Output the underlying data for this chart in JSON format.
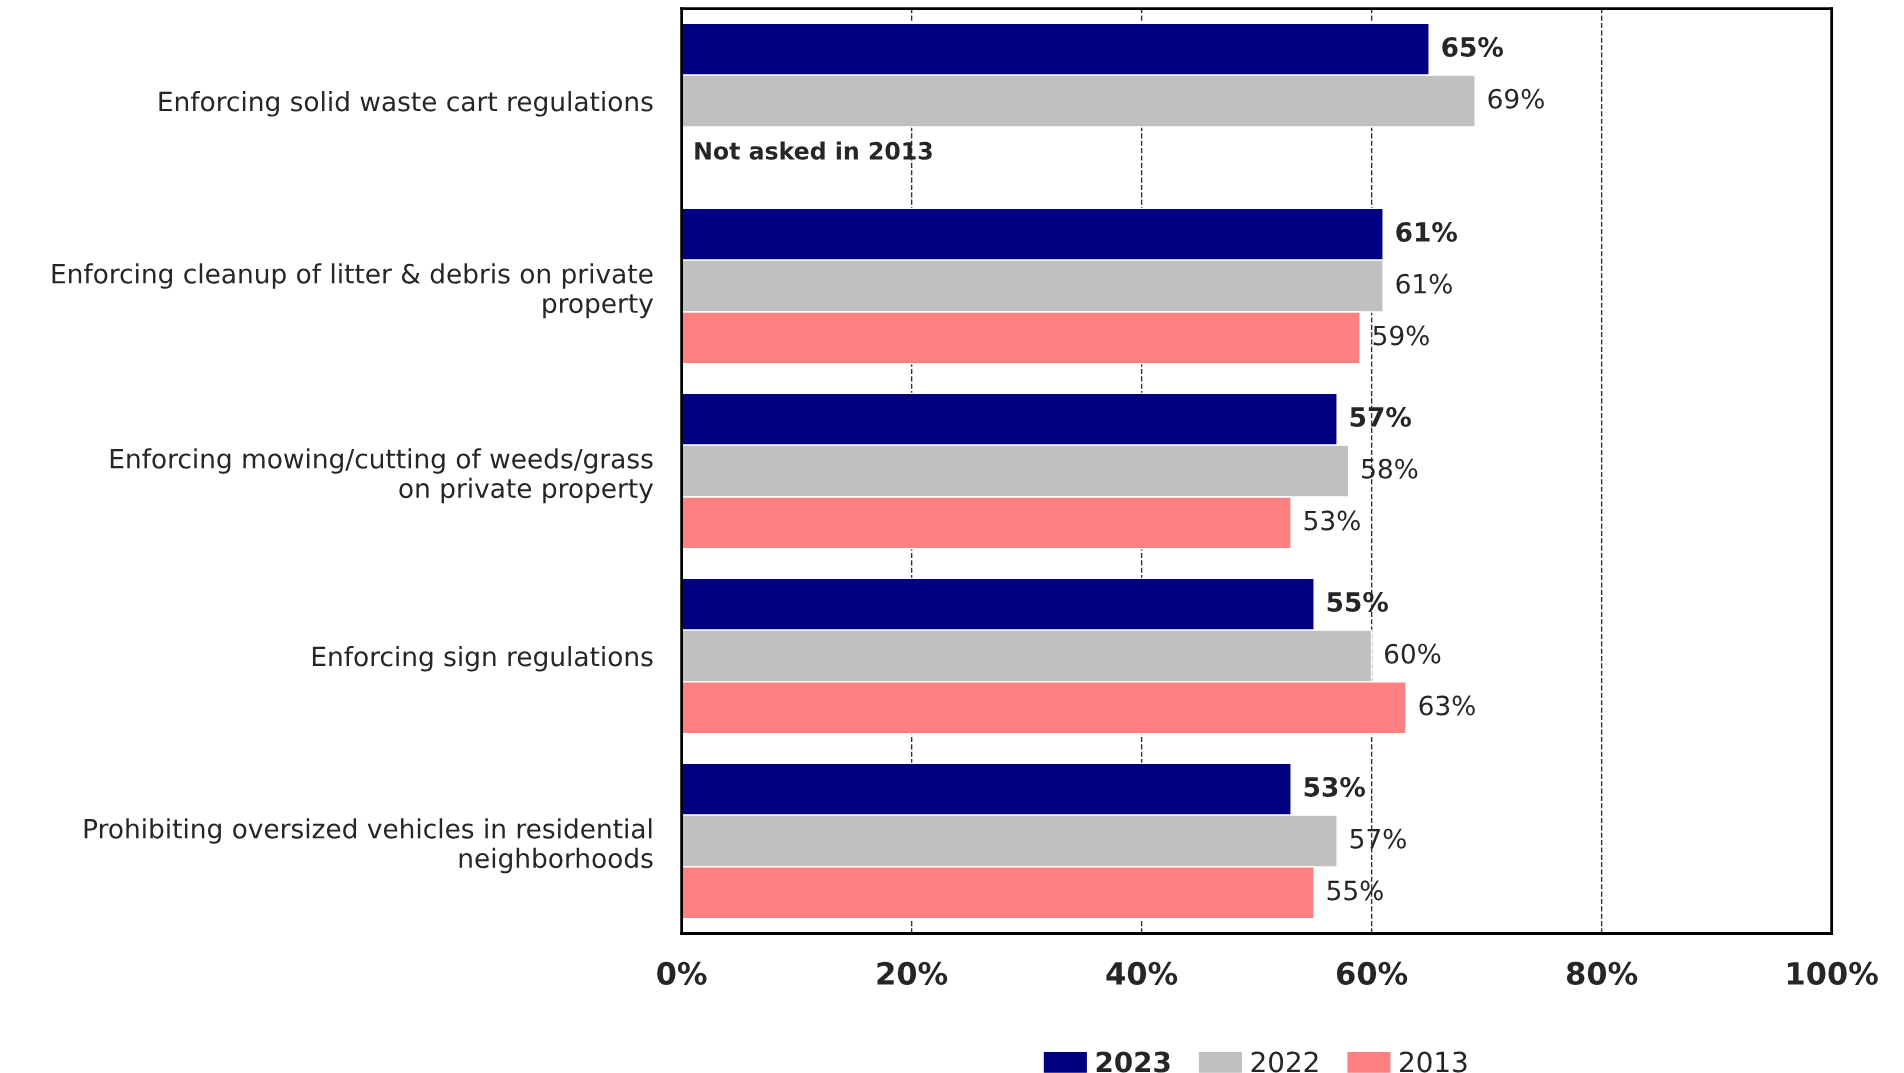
{
  "chart_data": {
    "type": "bar",
    "orientation": "horizontal",
    "categories": [
      "Enforcing solid waste cart regulations",
      "Enforcing cleanup of litter & debris on private\nproperty",
      "Enforcing mowing/cutting of weeds/grass\non private property",
      "Enforcing sign regulations",
      "Prohibiting oversized vehicles in residential\nneighborhoods"
    ],
    "series": [
      {
        "name": "2023",
        "color": "#000080",
        "values": [
          65,
          61,
          57,
          55,
          53
        ]
      },
      {
        "name": "2022",
        "color": "#c0c0c0",
        "values": [
          69,
          61,
          58,
          60,
          57
        ]
      },
      {
        "name": "2013",
        "color": "#ff8080",
        "values": [
          null,
          59,
          53,
          63,
          55
        ]
      }
    ],
    "xlim": [
      0,
      100
    ],
    "xticks": [
      {
        "value": 0,
        "label": "0%"
      },
      {
        "value": 20,
        "label": "20%"
      },
      {
        "value": 40,
        "label": "40%"
      },
      {
        "value": 60,
        "label": "60%"
      },
      {
        "value": 80,
        "label": "80%"
      },
      {
        "value": 100,
        "label": "100%"
      }
    ],
    "value_labels": [
      [
        "65%",
        "61%",
        "57%",
        "55%",
        "53%"
      ],
      [
        "69%",
        "61%",
        "58%",
        "60%",
        "57%"
      ],
      [
        null,
        "59%",
        "53%",
        "63%",
        "55%"
      ]
    ],
    "annotations": [
      "Not asked in 2013"
    ],
    "grid": "x",
    "legend": "bottom"
  }
}
